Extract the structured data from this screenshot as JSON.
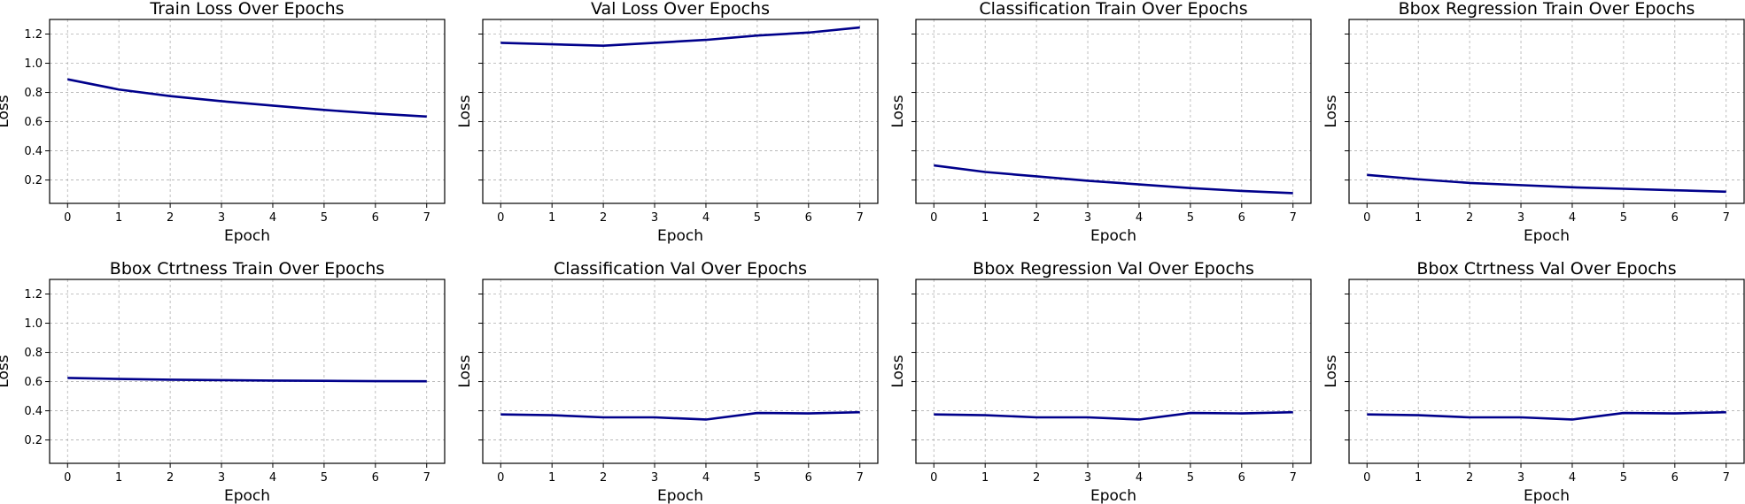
{
  "chart_data": [
    {
      "type": "line",
      "title": "Train Loss Over Epochs",
      "xlabel": "Epoch",
      "ylabel": "Loss",
      "x": [
        0,
        1,
        2,
        3,
        4,
        5,
        6,
        7
      ],
      "series": [
        {
          "values": [
            0.89,
            0.82,
            0.775,
            0.74,
            0.71,
            0.68,
            0.655,
            0.635
          ]
        }
      ],
      "xlim": [
        -0.35,
        7.35
      ],
      "ylim": [
        0.04,
        1.3
      ],
      "yticks": [
        0.2,
        0.4,
        0.6,
        0.8,
        1.0,
        1.2
      ],
      "ytick_labels": [
        "0.2",
        "0.4",
        "0.6",
        "0.8",
        "1.0",
        "1.2"
      ],
      "show_ytick_labels": true,
      "grid": true
    },
    {
      "type": "line",
      "title": "Val Loss Over Epochs",
      "xlabel": "Epoch",
      "ylabel": "Loss",
      "x": [
        0,
        1,
        2,
        3,
        4,
        5,
        6,
        7
      ],
      "series": [
        {
          "values": [
            1.14,
            1.13,
            1.12,
            1.14,
            1.16,
            1.19,
            1.21,
            1.245
          ]
        }
      ],
      "xlim": [
        -0.35,
        7.35
      ],
      "ylim": [
        0.04,
        1.3
      ],
      "yticks": [
        0.2,
        0.4,
        0.6,
        0.8,
        1.0,
        1.2
      ],
      "ytick_labels": [
        "",
        "",
        "",
        "",
        "",
        ""
      ],
      "show_ytick_labels": false,
      "grid": true
    },
    {
      "type": "line",
      "title": "Classification Train Over Epochs",
      "xlabel": "Epoch",
      "ylabel": "Loss",
      "x": [
        0,
        1,
        2,
        3,
        4,
        5,
        6,
        7
      ],
      "series": [
        {
          "values": [
            0.3,
            0.255,
            0.225,
            0.195,
            0.17,
            0.145,
            0.125,
            0.11
          ]
        }
      ],
      "xlim": [
        -0.35,
        7.35
      ],
      "ylim": [
        0.04,
        1.3
      ],
      "yticks": [
        0.2,
        0.4,
        0.6,
        0.8,
        1.0,
        1.2
      ],
      "ytick_labels": [
        "",
        "",
        "",
        "",
        "",
        ""
      ],
      "show_ytick_labels": false,
      "grid": true
    },
    {
      "type": "line",
      "title": "Bbox Regression Train Over Epochs",
      "xlabel": "Epoch",
      "ylabel": "Loss",
      "x": [
        0,
        1,
        2,
        3,
        4,
        5,
        6,
        7
      ],
      "series": [
        {
          "values": [
            0.235,
            0.205,
            0.18,
            0.165,
            0.15,
            0.14,
            0.13,
            0.12
          ]
        }
      ],
      "xlim": [
        -0.35,
        7.35
      ],
      "ylim": [
        0.04,
        1.3
      ],
      "yticks": [
        0.2,
        0.4,
        0.6,
        0.8,
        1.0,
        1.2
      ],
      "ytick_labels": [
        "",
        "",
        "",
        "",
        "",
        ""
      ],
      "show_ytick_labels": false,
      "grid": true
    },
    {
      "type": "line",
      "title": "Bbox Ctrtness Train Over Epochs",
      "xlabel": "Epoch",
      "ylabel": "Loss",
      "x": [
        0,
        1,
        2,
        3,
        4,
        5,
        6,
        7
      ],
      "series": [
        {
          "values": [
            0.625,
            0.618,
            0.613,
            0.61,
            0.607,
            0.605,
            0.603,
            0.602
          ]
        }
      ],
      "xlim": [
        -0.35,
        7.35
      ],
      "ylim": [
        0.04,
        1.3
      ],
      "yticks": [
        0.2,
        0.4,
        0.6,
        0.8,
        1.0,
        1.2
      ],
      "ytick_labels": [
        "0.2",
        "0.4",
        "0.6",
        "0.8",
        "1.0",
        "1.2"
      ],
      "show_ytick_labels": true,
      "grid": true
    },
    {
      "type": "line",
      "title": "Classification Val Over Epochs",
      "xlabel": "Epoch",
      "ylabel": "Loss",
      "x": [
        0,
        1,
        2,
        3,
        4,
        5,
        6,
        7
      ],
      "series": [
        {
          "values": [
            0.375,
            0.37,
            0.355,
            0.355,
            0.34,
            0.385,
            0.382,
            0.39
          ]
        }
      ],
      "xlim": [
        -0.35,
        7.35
      ],
      "ylim": [
        0.04,
        1.3
      ],
      "yticks": [
        0.2,
        0.4,
        0.6,
        0.8,
        1.0,
        1.2
      ],
      "ytick_labels": [
        "",
        "",
        "",
        "",
        "",
        ""
      ],
      "show_ytick_labels": false,
      "grid": true
    },
    {
      "type": "line",
      "title": "Bbox Regression Val Over Epochs",
      "xlabel": "Epoch",
      "ylabel": "Loss",
      "x": [
        0,
        1,
        2,
        3,
        4,
        5,
        6,
        7
      ],
      "series": [
        {
          "values": [
            0.375,
            0.37,
            0.355,
            0.355,
            0.34,
            0.385,
            0.382,
            0.39
          ]
        }
      ],
      "xlim": [
        -0.35,
        7.35
      ],
      "ylim": [
        0.04,
        1.3
      ],
      "yticks": [
        0.2,
        0.4,
        0.6,
        0.8,
        1.0,
        1.2
      ],
      "ytick_labels": [
        "",
        "",
        "",
        "",
        "",
        ""
      ],
      "show_ytick_labels": false,
      "grid": true
    },
    {
      "type": "line",
      "title": "Bbox Ctrtness Val Over Epochs",
      "xlabel": "Epoch",
      "ylabel": "Loss",
      "x": [
        0,
        1,
        2,
        3,
        4,
        5,
        6,
        7
      ],
      "series": [
        {
          "values": [
            0.375,
            0.37,
            0.355,
            0.355,
            0.34,
            0.385,
            0.382,
            0.39
          ]
        }
      ],
      "xlim": [
        -0.35,
        7.35
      ],
      "ylim": [
        0.04,
        1.3
      ],
      "yticks": [
        0.2,
        0.4,
        0.6,
        0.8,
        1.0,
        1.2
      ],
      "ytick_labels": [
        "",
        "",
        "",
        "",
        "",
        ""
      ],
      "show_ytick_labels": false,
      "grid": true
    }
  ],
  "colors": {
    "line": "#00008b",
    "frame": "#000000",
    "grid": "#b0b0b0",
    "background": "#ffffff"
  }
}
